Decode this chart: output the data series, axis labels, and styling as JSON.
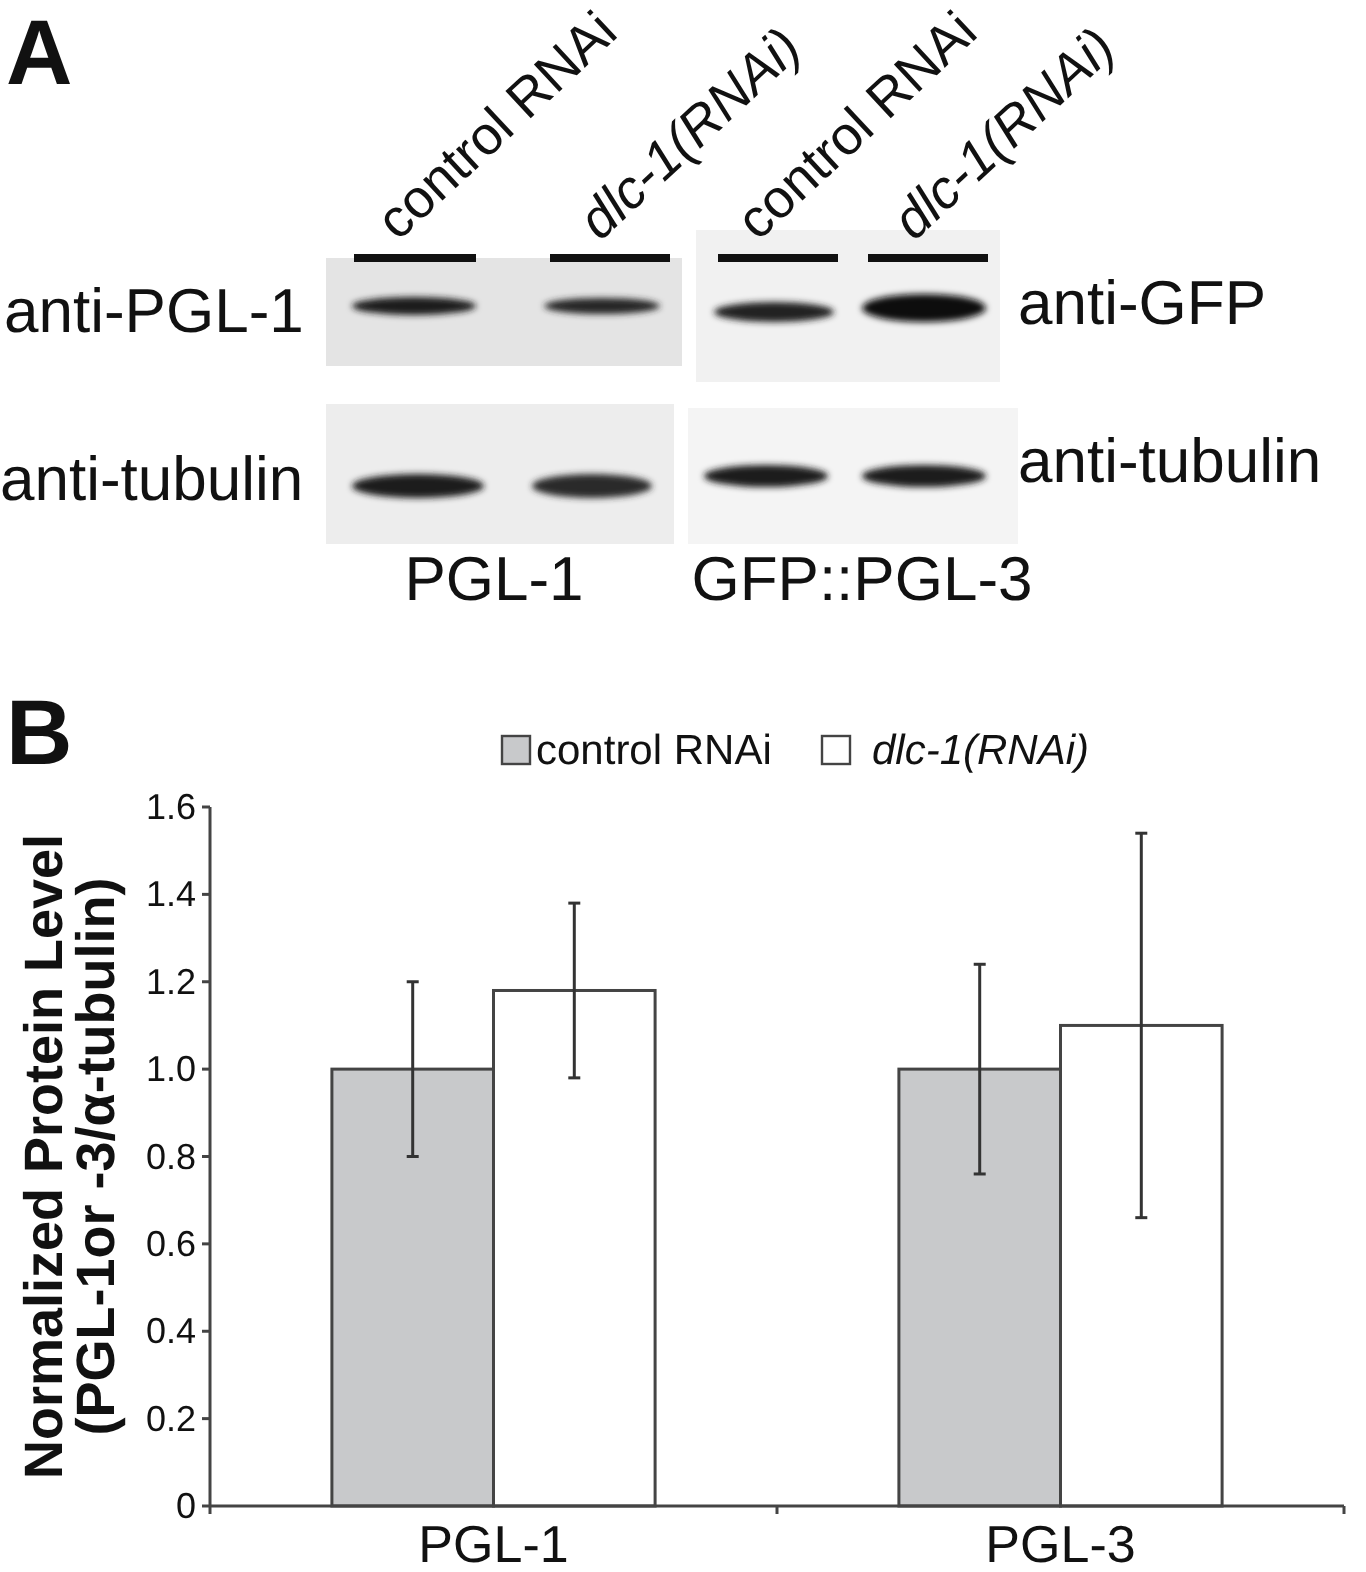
{
  "chart_data": [
    {
      "type": "other",
      "annotations": [
        "A",
        "control RNAi",
        "dlc-1(RNAi)",
        "control RNAi",
        "dlc-1(RNAi)",
        "anti-PGL-1",
        "anti-tubulin",
        "anti-GFP",
        "anti-tubulin",
        "PGL-1",
        "GFP::PGL-3"
      ]
    },
    {
      "type": "bar",
      "annotations": [
        "B"
      ],
      "categories": [
        "PGL-1",
        "PGL-3"
      ],
      "series": [
        {
          "name": "control RNAi",
          "color": "#c8c9cb",
          "values": [
            1.0,
            1.0
          ],
          "errors": [
            0.2,
            0.24
          ]
        },
        {
          "name": "dlc-1(RNAi)",
          "color": "#ffffff",
          "values": [
            1.18,
            1.1
          ],
          "errors": [
            0.2,
            0.44
          ]
        }
      ],
      "ylabel": "Normalized Protein Level\n(PGL-1or -3/α-tubulin)",
      "ylim": [
        0,
        1.6
      ],
      "yticks": [
        0,
        0.2,
        0.4,
        0.6,
        0.8,
        {
          "value": 1,
          "label": "1.0"
        },
        1.2,
        1.4,
        1.6
      ],
      "legend": "top"
    }
  ]
}
